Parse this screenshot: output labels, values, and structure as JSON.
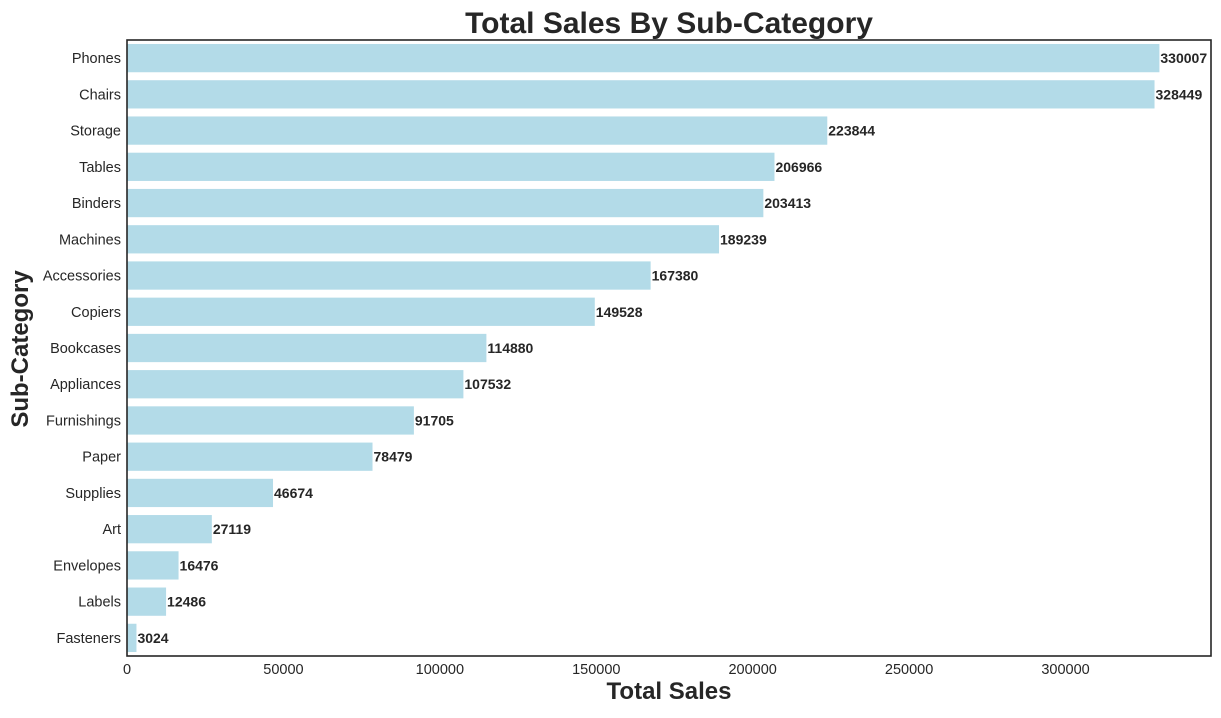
{
  "chart_data": {
    "type": "bar",
    "orientation": "horizontal",
    "title": "Total Sales By Sub-Category",
    "xlabel": "Total Sales",
    "ylabel": "Sub-Category",
    "categories": [
      "Phones",
      "Chairs",
      "Storage",
      "Tables",
      "Binders",
      "Machines",
      "Accessories",
      "Copiers",
      "Bookcases",
      "Appliances",
      "Furnishings",
      "Paper",
      "Supplies",
      "Art",
      "Envelopes",
      "Labels",
      "Fasteners"
    ],
    "values": [
      330007,
      328449,
      223844,
      206966,
      203413,
      189239,
      167380,
      149528,
      114880,
      107532,
      91705,
      78479,
      46674,
      27119,
      16476,
      12486,
      3024
    ],
    "value_labels": [
      "330007",
      "328449",
      "223844",
      "206966",
      "203413",
      "189239",
      "167380",
      "149528",
      "114880",
      "107532",
      "91705",
      "78479",
      "46674",
      "27119",
      "16476",
      "12486",
      "3024"
    ],
    "xticks": [
      0,
      50000,
      100000,
      150000,
      200000,
      250000,
      300000
    ],
    "xtick_labels": [
      "0",
      "50000",
      "100000",
      "150000",
      "200000",
      "250000",
      "300000"
    ],
    "xlim": [
      0,
      346500
    ],
    "grid": false,
    "bar_color": "#add8e6",
    "text_color": "#262626"
  }
}
